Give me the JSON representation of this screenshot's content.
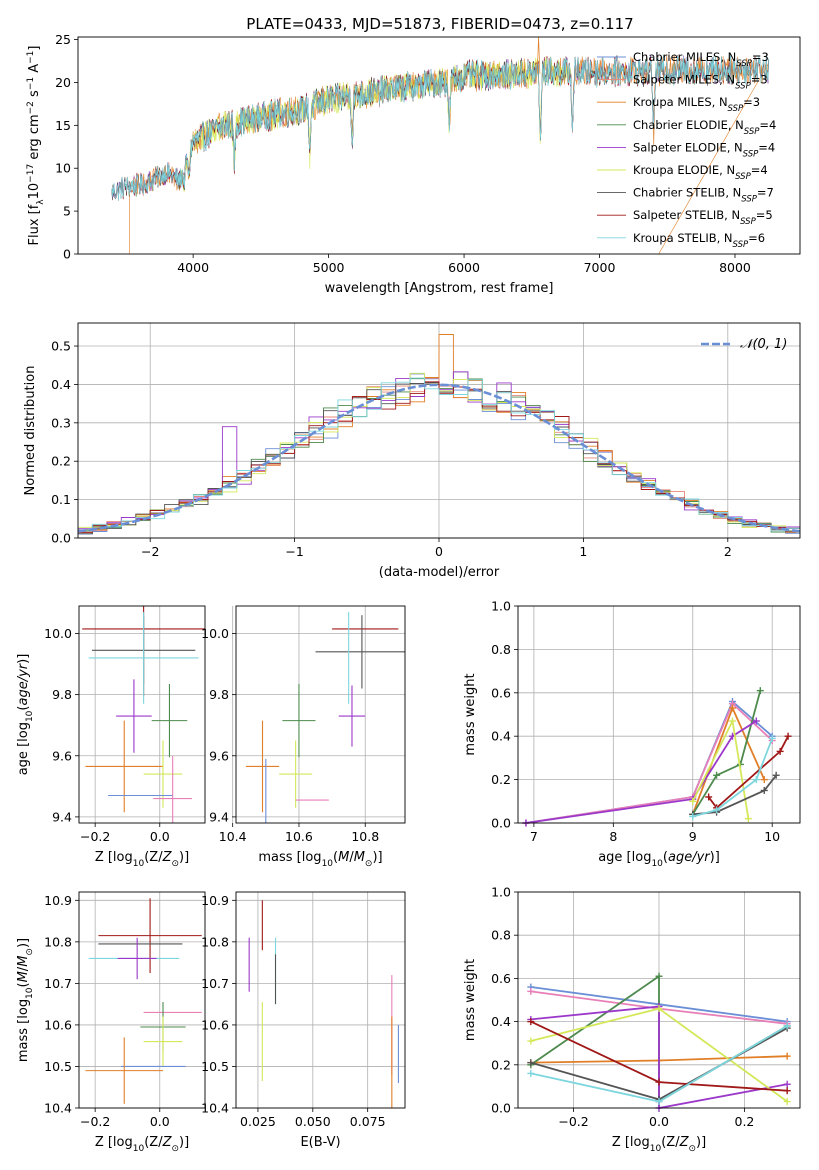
{
  "figure": {
    "title": "PLATE=0433, MJD=51873, FIBERID=0473, z=0.117"
  },
  "colors": {
    "chabrier_miles": "#6b8fd6",
    "salpeter_miles": "#e8887a",
    "kroupa_miles": "#e07f28",
    "chabrier_elodie": "#4d8a4d",
    "salpeter_elodie": "#9b38c9",
    "kroupa_elodie": "#d4e85a",
    "chabrier_stelib": "#555555",
    "salpeter_stelib": "#a01818",
    "kroupa_stelib": "#7dd6de",
    "pink": "#e87fb8",
    "normal_curve": "#6b8fd6"
  },
  "legend_spectrum": [
    {
      "base": "Chabrier MILES, N",
      "sub": "SSP",
      "rest": "=3",
      "color": "#6b8fd6"
    },
    {
      "base": "Salpeter MILES, N",
      "sub": "SSP",
      "rest": "=3",
      "color": "#e8887a"
    },
    {
      "base": "Kroupa MILES, N",
      "sub": "SSP",
      "rest": "=3",
      "color": "#e07f28"
    },
    {
      "base": "Chabrier ELODIE, N",
      "sub": "SSP",
      "rest": "=4",
      "color": "#4d8a4d"
    },
    {
      "base": "Salpeter ELODIE, N",
      "sub": "SSP",
      "rest": "=4",
      "color": "#9b38c9"
    },
    {
      "base": "Kroupa ELODIE, N",
      "sub": "SSP",
      "rest": "=4",
      "color": "#d4e85a"
    },
    {
      "base": "Chabrier STELIB, N",
      "sub": "SSP",
      "rest": "=7",
      "color": "#555555"
    },
    {
      "base": "Salpeter STELIB, N",
      "sub": "SSP",
      "rest": "=5",
      "color": "#a01818"
    },
    {
      "base": "Kroupa STELIB, N",
      "sub": "SSP",
      "rest": "=6",
      "color": "#7dd6de"
    }
  ],
  "legend_hist": {
    "label": "𝒩(0, 1)"
  },
  "chart_data": [
    {
      "id": "spectrum",
      "type": "line",
      "xlabel": "wavelength [Angstrom, rest frame]",
      "ylabel": "Flux [f_λ 10^-17 erg cm^-2 s^-1 A^-1]",
      "xlim": [
        3150,
        8480
      ],
      "ylim": [
        0,
        25.3
      ],
      "xticks": [
        4000,
        5000,
        6000,
        7000,
        8000
      ],
      "yticks": [
        0,
        5,
        10,
        15,
        20,
        25
      ],
      "continuum": [
        [
          3400,
          7.2
        ],
        [
          3500,
          7.8
        ],
        [
          3650,
          8.2
        ],
        [
          3800,
          9.5
        ],
        [
          3900,
          8.5
        ],
        [
          4000,
          13
        ],
        [
          4200,
          14.8
        ],
        [
          4500,
          16
        ],
        [
          4800,
          16.8
        ],
        [
          5000,
          18
        ],
        [
          5300,
          18.8
        ],
        [
          5600,
          19.5
        ],
        [
          5900,
          20.2
        ],
        [
          6000,
          20.8
        ],
        [
          6300,
          20.9
        ],
        [
          6600,
          21.3
        ],
        [
          6900,
          21.2
        ],
        [
          7200,
          21.3
        ],
        [
          7600,
          21.4
        ],
        [
          8000,
          21.5
        ],
        [
          8250,
          21.6
        ]
      ],
      "x_range": [
        3400,
        8250
      ],
      "dips": [
        [
          3933,
          4.8
        ],
        [
          3969,
          3.5
        ],
        [
          4304,
          2.0
        ],
        [
          4861,
          1.5
        ],
        [
          5175,
          2.5
        ],
        [
          5890,
          3.0
        ],
        [
          6563,
          -2.5
        ],
        [
          6800,
          1.5
        ],
        [
          7400,
          1.2
        ]
      ]
    },
    {
      "id": "residual_hist",
      "type": "histogram",
      "xlabel": "(data-model)/error",
      "ylabel": "Normed distribution",
      "xlim": [
        -2.5,
        2.5
      ],
      "ylim": [
        0,
        0.56
      ],
      "xticks": [
        -2,
        -1,
        0,
        1,
        2
      ],
      "yticks": [
        0.0,
        0.1,
        0.2,
        0.3,
        0.4,
        0.5
      ],
      "bin_width": 0.1,
      "reference": "normal(0,1)"
    },
    {
      "id": "age_vs_Z",
      "type": "errorbar",
      "xlabel": "Z [log10(Z/Z⊙)]",
      "ylabel": "age [log10(age/yr)]",
      "xlim": [
        -0.25,
        0.14
      ],
      "ylim": [
        9.38,
        10.09
      ],
      "xticks": [
        -0.2,
        0.0
      ],
      "yticks": [
        9.4,
        9.6,
        9.8,
        10.0
      ],
      "points": [
        {
          "x": -0.05,
          "y": 10.015,
          "xerr": 0.19,
          "yerr": 0.22,
          "color": "#a01818"
        },
        {
          "x": -0.05,
          "y": 9.945,
          "xerr": 0.16,
          "yerr": 0.11,
          "color": "#555555"
        },
        {
          "x": -0.05,
          "y": 9.92,
          "xerr": 0.17,
          "yerr": 0.15,
          "color": "#7dd6de"
        },
        {
          "x": -0.08,
          "y": 9.73,
          "xerr": 0.055,
          "yerr": 0.12,
          "color": "#9b38c9"
        },
        {
          "x": 0.03,
          "y": 9.715,
          "xerr": 0.055,
          "yerr": 0.12,
          "color": "#4d8a4d"
        },
        {
          "x": -0.11,
          "y": 9.565,
          "xerr": 0.12,
          "yerr": 0.15,
          "color": "#e07f28"
        },
        {
          "x": 0.01,
          "y": 9.54,
          "xerr": 0.06,
          "yerr": 0.11,
          "color": "#d4e85a"
        },
        {
          "x": -0.06,
          "y": 9.47,
          "xerr": 0.1,
          "yerr": 0.0,
          "color": "#6b8fd6"
        },
        {
          "x": 0.04,
          "y": 9.46,
          "xerr": 0.06,
          "yerr": 0.14,
          "color": "#e87fb8"
        }
      ]
    },
    {
      "id": "age_vs_mass",
      "type": "errorbar",
      "xlabel": "mass [log10(M/M⊙)]",
      "ylabel": "",
      "xlim": [
        10.41,
        10.92
      ],
      "ylim": [
        9.38,
        10.09
      ],
      "xticks": [
        10.4,
        10.6,
        10.8
      ],
      "yticks": [
        9.4,
        9.6,
        9.8,
        10.0
      ],
      "points": [
        {
          "x": 10.8,
          "y": 10.015,
          "xerr": 0.1,
          "yerr": 0.0,
          "color": "#a01818"
        },
        {
          "x": 10.79,
          "y": 9.94,
          "xerr": 0.14,
          "yerr": 0.12,
          "color": "#555555"
        },
        {
          "x": 10.75,
          "y": 9.92,
          "xerr": 0.0,
          "yerr": 0.15,
          "color": "#7dd6de"
        },
        {
          "x": 10.76,
          "y": 9.73,
          "xerr": 0.04,
          "yerr": 0.1,
          "color": "#9b38c9"
        },
        {
          "x": 10.6,
          "y": 9.715,
          "xerr": 0.05,
          "yerr": 0.12,
          "color": "#4d8a4d"
        },
        {
          "x": 10.49,
          "y": 9.565,
          "xerr": 0.05,
          "yerr": 0.15,
          "color": "#e07f28"
        },
        {
          "x": 10.59,
          "y": 9.54,
          "xerr": 0.05,
          "yerr": 0.11,
          "color": "#d4e85a"
        },
        {
          "x": 10.5,
          "y": 9.47,
          "xerr": 0.0,
          "yerr": 0.12,
          "color": "#6b8fd6"
        },
        {
          "x": 10.64,
          "y": 9.455,
          "xerr": 0.05,
          "yerr": 0.0,
          "color": "#e87fb8"
        }
      ]
    },
    {
      "id": "massweight_vs_age",
      "type": "line",
      "xlabel": "age [log10(age/yr)]",
      "ylabel": "mass weight",
      "xlim": [
        6.8,
        10.35
      ],
      "ylim": [
        0,
        1.0
      ],
      "xticks": [
        7,
        8,
        9,
        10
      ],
      "yticks": [
        0.0,
        0.2,
        0.4,
        0.6,
        0.8,
        1.0
      ],
      "series": [
        {
          "color": "#6b8fd6",
          "points": [
            [
              6.9,
              0
            ],
            [
              9,
              0.12
            ],
            [
              9.5,
              0.56
            ],
            [
              10,
              0.4
            ]
          ]
        },
        {
          "color": "#e87fb8",
          "points": [
            [
              6.9,
              0
            ],
            [
              9,
              0.12
            ],
            [
              9.5,
              0.55
            ],
            [
              10,
              0.38
            ]
          ]
        },
        {
          "color": "#e07f28",
          "points": [
            [
              9,
              0.04
            ],
            [
              9.5,
              0.53
            ],
            [
              9.9,
              0.2
            ]
          ]
        },
        {
          "color": "#4d8a4d",
          "points": [
            [
              9,
              0.04
            ],
            [
              9.3,
              0.22
            ],
            [
              9.6,
              0.27
            ],
            [
              9.85,
              0.61
            ]
          ]
        },
        {
          "color": "#9b38c9",
          "points": [
            [
              6.9,
              0
            ],
            [
              9,
              0.11
            ],
            [
              9.5,
              0.4
            ],
            [
              9.8,
              0.47
            ]
          ]
        },
        {
          "color": "#d4e85a",
          "points": [
            [
              9,
              0.1
            ],
            [
              9.5,
              0.47
            ],
            [
              9.7,
              0.02
            ]
          ]
        },
        {
          "color": "#555555",
          "points": [
            [
              9,
              0.04
            ],
            [
              9.3,
              0.05
            ],
            [
              9.9,
              0.15
            ],
            [
              10.05,
              0.22
            ]
          ]
        },
        {
          "color": "#a01818",
          "points": [
            [
              9.2,
              0.12
            ],
            [
              9.3,
              0.07
            ],
            [
              10.1,
              0.33
            ],
            [
              10.2,
              0.4
            ]
          ]
        },
        {
          "color": "#7dd6de",
          "points": [
            [
              9,
              0.03
            ],
            [
              9.3,
              0.06
            ],
            [
              9.8,
              0.2
            ],
            [
              10,
              0.39
            ]
          ]
        }
      ]
    },
    {
      "id": "mass_vs_Z",
      "type": "errorbar",
      "xlabel": "Z [log10(Z/Z⊙)]",
      "ylabel": "mass [log10(M/M⊙)]",
      "xlim": [
        -0.25,
        0.14
      ],
      "ylim": [
        10.4,
        10.92
      ],
      "xticks": [
        -0.2,
        0.0
      ],
      "yticks": [
        10.4,
        10.5,
        10.6,
        10.7,
        10.8,
        10.9
      ],
      "points": [
        {
          "x": -0.03,
          "y": 10.815,
          "xerr": 0.16,
          "yerr": 0.09,
          "color": "#a01818"
        },
        {
          "x": -0.06,
          "y": 10.795,
          "xerr": 0.13,
          "yerr": 0.0,
          "color": "#555555"
        },
        {
          "x": -0.08,
          "y": 10.76,
          "xerr": 0.14,
          "yerr": 0.0,
          "color": "#7dd6de"
        },
        {
          "x": -0.07,
          "y": 10.76,
          "xerr": 0.06,
          "yerr": 0.05,
          "color": "#9b38c9"
        },
        {
          "x": 0.04,
          "y": 10.63,
          "xerr": 0.09,
          "yerr": 0.0,
          "color": "#e87fb8"
        },
        {
          "x": 0.01,
          "y": 10.595,
          "xerr": 0.07,
          "yerr": 0.06,
          "color": "#4d8a4d"
        },
        {
          "x": 0.01,
          "y": 10.56,
          "xerr": 0.06,
          "yerr": 0.06,
          "color": "#d4e85a"
        },
        {
          "x": -0.02,
          "y": 10.5,
          "xerr": 0.1,
          "yerr": 0.0,
          "color": "#6b8fd6"
        },
        {
          "x": -0.11,
          "y": 10.49,
          "xerr": 0.12,
          "yerr": 0.08,
          "color": "#e07f28"
        }
      ]
    },
    {
      "id": "mass_vs_EBV",
      "type": "errorbar",
      "xlabel": "E(B-V)",
      "ylabel": "",
      "xlim": [
        0.015,
        0.092
      ],
      "ylim": [
        10.4,
        10.92
      ],
      "xticks": [
        0.025,
        0.05,
        0.075
      ],
      "yticks": [
        10.4,
        10.5,
        10.6,
        10.7,
        10.8,
        10.9
      ],
      "points": [
        {
          "x": 0.027,
          "y": 10.84,
          "xerr": 0.0,
          "yerr": 0.06,
          "color": "#a01818"
        },
        {
          "x": 0.021,
          "y": 10.745,
          "xerr": 0.0,
          "yerr": 0.065,
          "color": "#9b38c9"
        },
        {
          "x": 0.033,
          "y": 10.73,
          "xerr": 0.0,
          "yerr": 0.08,
          "color": "#7dd6de"
        },
        {
          "x": 0.033,
          "y": 10.71,
          "xerr": 0.0,
          "yerr": 0.06,
          "color": "#555555"
        },
        {
          "x": 0.027,
          "y": 10.56,
          "xerr": 0.0,
          "yerr": 0.095,
          "color": "#d4e85a"
        },
        {
          "x": 0.086,
          "y": 10.6,
          "xerr": 0.0,
          "yerr": 0.12,
          "color": "#e87fb8"
        },
        {
          "x": 0.086,
          "y": 10.5,
          "xerr": 0.0,
          "yerr": 0.12,
          "color": "#e07f28"
        },
        {
          "x": 0.089,
          "y": 10.53,
          "xerr": 0.0,
          "yerr": 0.07,
          "color": "#6b8fd6"
        }
      ]
    },
    {
      "id": "massweight_vs_Z",
      "type": "line",
      "xlabel": "Z [log10(Z/Z⊙)]",
      "ylabel": "mass weight",
      "xlim": [
        -0.33,
        0.33
      ],
      "ylim": [
        0,
        1.0
      ],
      "xticks": [
        -0.2,
        0.0,
        0.2
      ],
      "yticks": [
        0.0,
        0.2,
        0.4,
        0.6,
        0.8,
        1.0
      ],
      "series": [
        {
          "color": "#6b8fd6",
          "points": [
            [
              -0.3,
              0.56
            ],
            [
              0,
              0.48
            ],
            [
              0.3,
              0.4
            ]
          ]
        },
        {
          "color": "#e87fb8",
          "points": [
            [
              -0.3,
              0.54
            ],
            [
              0,
              0.46
            ],
            [
              0.3,
              0.39
            ]
          ]
        },
        {
          "color": "#e07f28",
          "points": [
            [
              -0.3,
              0.21
            ],
            [
              0,
              0.22
            ],
            [
              0.3,
              0.24
            ]
          ]
        },
        {
          "color": "#4d8a4d",
          "points": [
            [
              -0.3,
              0.2
            ],
            [
              0,
              0.61
            ],
            [
              0,
              0.03
            ],
            [
              0.3,
              0.38
            ]
          ]
        },
        {
          "color": "#9b38c9",
          "points": [
            [
              -0.3,
              0.41
            ],
            [
              0,
              0.47
            ],
            [
              0,
              0.0
            ],
            [
              0.3,
              0.11
            ]
          ]
        },
        {
          "color": "#d4e85a",
          "points": [
            [
              -0.3,
              0.31
            ],
            [
              0,
              0.46
            ],
            [
              0.3,
              0.03
            ]
          ]
        },
        {
          "color": "#555555",
          "points": [
            [
              -0.3,
              0.21
            ],
            [
              0,
              0.04
            ],
            [
              0.3,
              0.37
            ]
          ]
        },
        {
          "color": "#a01818",
          "points": [
            [
              -0.3,
              0.4
            ],
            [
              0,
              0.12
            ],
            [
              0.3,
              0.08
            ]
          ]
        },
        {
          "color": "#7dd6de",
          "points": [
            [
              -0.3,
              0.16
            ],
            [
              0,
              0.03
            ],
            [
              0.3,
              0.38
            ]
          ]
        }
      ]
    }
  ]
}
